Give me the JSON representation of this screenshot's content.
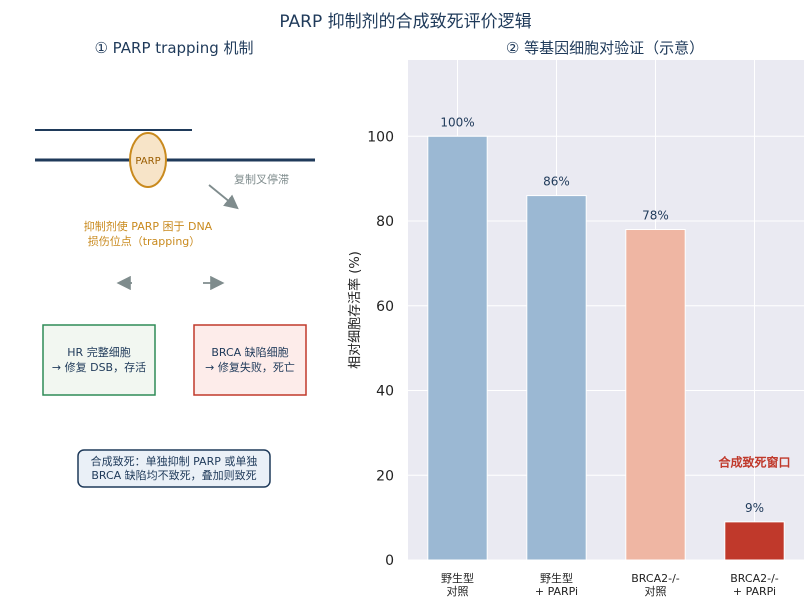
{
  "page_title": "PARP 抑制剂的合成致死评价逻辑",
  "left_panel": {
    "title": "① PARP trapping 机制",
    "parp_label": "PARP",
    "stall_label": "复制叉停滞",
    "trap_text": [
      "抑制剂使 PARP 困于 DNA",
      "损伤位点（trapping）"
    ],
    "hr_box": [
      "HR 完整细胞",
      "→ 修复 DSB，存活"
    ],
    "brca_box": [
      "BRCA 缺陷细胞",
      "→ 修复失败，死亡"
    ],
    "summary_box": [
      "合成致死：单独抑制 PARP 或单独",
      "BRCA 缺陷均不致死，叠加则致死"
    ],
    "colors": {
      "dna": "#1f3a5a",
      "parp_fill": "#f7e4c8",
      "parp_stroke": "#c98a1e",
      "trap_text": "#c98a1e",
      "hr": "#2e8b57",
      "brca": "#c0392b",
      "arrow": "#7f8c8d"
    }
  },
  "right_panel": {
    "title": "② 等基因细胞对验证（示意）"
  },
  "chart_data": {
    "type": "bar",
    "categories": [
      [
        "野生型",
        "对照"
      ],
      [
        "野生型",
        "+ PARPi"
      ],
      [
        "BRCA2-/-",
        "对照"
      ],
      [
        "BRCA2-/-",
        "+ PARPi"
      ]
    ],
    "values": [
      100,
      86,
      78,
      9
    ],
    "value_labels": [
      "100%",
      "86%",
      "78%",
      "9%"
    ],
    "bar_colors": [
      "#9bb8d3",
      "#9bb8d3",
      "#efb6a3",
      "#c0392b"
    ],
    "ylabel": "相对细胞存活率 (%)",
    "ylim": [
      0,
      100
    ],
    "ymax_display": 118,
    "yticks": [
      0,
      20,
      40,
      60,
      80,
      100
    ],
    "grid": true,
    "background": "#eaeaf2",
    "annotation": {
      "text": "合成致死窗口",
      "color": "#c0392b",
      "x_index": 3,
      "y": 23
    }
  }
}
